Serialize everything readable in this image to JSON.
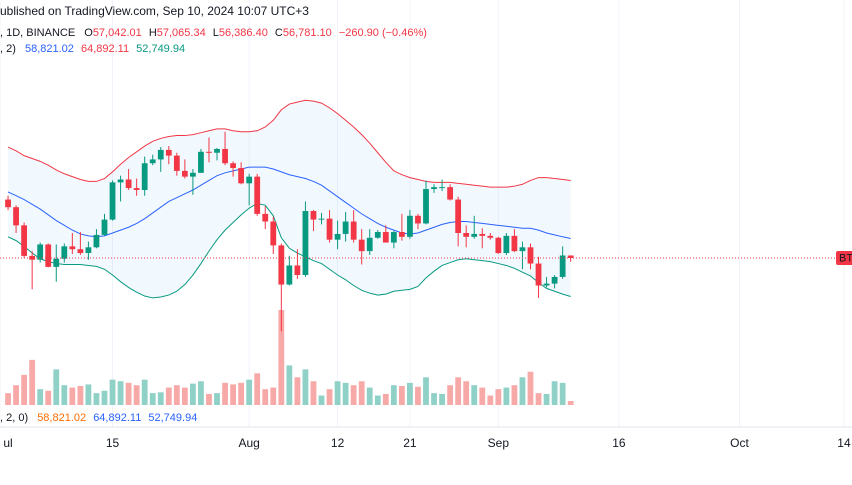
{
  "chart_data": {
    "type": "candlestick",
    "header": "ublished on TradingView.com, Sep 10, 2024 10:07 UTC+3",
    "symbol_info": ", 1D, BINANCE",
    "ohlc": [
      {
        "label": "O",
        "value": "57,042.01"
      },
      {
        "label": "H",
        "value": "57,065.34"
      },
      {
        "label": "L",
        "value": "56,386.40"
      },
      {
        "label": "C",
        "value": "56,781.10"
      }
    ],
    "change": "−260.90 (−0.46%)",
    "bb_legend": {
      "label": ", 2)",
      "values": [
        "58,821.02",
        "64,892.11",
        "52,749.94"
      ]
    },
    "volume_legend": {
      "label": ", 2, 0)",
      "values": [
        "58,821.02",
        "64,892.11",
        "52,749.94"
      ]
    },
    "price_label": "BT",
    "x": [
      "2024-07-02",
      "2024-07-03",
      "2024-07-04",
      "2024-07-05",
      "2024-07-06",
      "2024-07-07",
      "2024-07-08",
      "2024-07-09",
      "2024-07-10",
      "2024-07-11",
      "2024-07-12",
      "2024-07-13",
      "2024-07-14",
      "2024-07-15",
      "2024-07-16",
      "2024-07-17",
      "2024-07-18",
      "2024-07-19",
      "2024-07-20",
      "2024-07-21",
      "2024-07-22",
      "2024-07-23",
      "2024-07-24",
      "2024-07-25",
      "2024-07-26",
      "2024-07-27",
      "2024-07-28",
      "2024-07-29",
      "2024-07-30",
      "2024-07-31",
      "2024-08-01",
      "2024-08-02",
      "2024-08-03",
      "2024-08-04",
      "2024-08-05",
      "2024-08-06",
      "2024-08-07",
      "2024-08-08",
      "2024-08-09",
      "2024-08-10",
      "2024-08-11",
      "2024-08-12",
      "2024-08-13",
      "2024-08-14",
      "2024-08-15",
      "2024-08-16",
      "2024-08-17",
      "2024-08-18",
      "2024-08-19",
      "2024-08-20",
      "2024-08-21",
      "2024-08-22",
      "2024-08-23",
      "2024-08-24",
      "2024-08-25",
      "2024-08-26",
      "2024-08-27",
      "2024-08-28",
      "2024-08-29",
      "2024-08-30",
      "2024-08-31",
      "2024-09-01",
      "2024-09-02",
      "2024-09-03",
      "2024-09-04",
      "2024-09-05",
      "2024-09-06",
      "2024-09-07",
      "2024-09-08",
      "2024-09-09",
      "2024-09-10"
    ],
    "open": [
      62900,
      62100,
      60200,
      57000,
      56600,
      58200,
      55850,
      56700,
      58000,
      57700,
      57300,
      57900,
      59200,
      60800,
      64700,
      65000,
      64100,
      63900,
      66700,
      67100,
      68100,
      67500,
      65900,
      65300,
      65700,
      67900,
      67800,
      68200,
      66700,
      66200,
      64600,
      65300,
      61400,
      60600,
      58100,
      54000,
      56000,
      55000,
      61700,
      60800,
      60900,
      58700,
      59300,
      60600,
      58700,
      57500,
      58900,
      59500,
      58400,
      59500,
      59000,
      61200,
      60400,
      64000,
      64200,
      64200,
      62900,
      59400,
      59000,
      59300,
      59100,
      58900,
      57300,
      59100,
      57500,
      57900,
      56200,
      53900,
      54100,
      54800,
      57042.01
    ],
    "high": [
      63300,
      62300,
      60500,
      57500,
      58400,
      58300,
      58200,
      58300,
      59400,
      59500,
      58500,
      59800,
      61400,
      64900,
      65400,
      66100,
      65100,
      67400,
      67600,
      68400,
      68500,
      67800,
      67100,
      66100,
      68200,
      69400,
      68300,
      70000,
      66900,
      66800,
      65600,
      65600,
      62200,
      61100,
      58300,
      57000,
      57700,
      62700,
      61800,
      61500,
      61800,
      60700,
      61600,
      61800,
      59800,
      59800,
      59700,
      60200,
      59600,
      61400,
      61800,
      61400,
      64900,
      64500,
      65000,
      64500,
      63200,
      60200,
      61200,
      59900,
      59400,
      59000,
      59400,
      59800,
      58500,
      58300,
      56900,
      54800,
      55000,
      58000,
      57065.34
    ],
    "low": [
      61800,
      59400,
      56800,
      53500,
      56300,
      55800,
      54300,
      56300,
      57200,
      57100,
      56600,
      57800,
      59100,
      60700,
      62700,
      63900,
      63300,
      63300,
      66500,
      65800,
      66600,
      65400,
      65100,
      63400,
      65700,
      66800,
      67000,
      66500,
      65300,
      64500,
      62300,
      61200,
      59800,
      57200,
      49100,
      53900,
      54600,
      54800,
      59600,
      60300,
      58400,
      57700,
      58500,
      58400,
      56100,
      57100,
      58800,
      58400,
      57800,
      58600,
      58800,
      59800,
      60300,
      63600,
      63800,
      62800,
      58000,
      57900,
      58800,
      57800,
      58700,
      57200,
      57100,
      57400,
      55600,
      55600,
      52600,
      53700,
      53600,
      54600,
      56386.4
    ],
    "close": [
      62100,
      60200,
      57000,
      56600,
      58200,
      55850,
      56700,
      58000,
      57700,
      57300,
      57900,
      59200,
      60800,
      64700,
      65000,
      64100,
      63900,
      66700,
      67100,
      68100,
      67500,
      65900,
      65300,
      65700,
      67900,
      67800,
      68200,
      66700,
      66200,
      64600,
      65300,
      61400,
      60600,
      58100,
      54000,
      56000,
      55000,
      61700,
      60800,
      60900,
      58700,
      59300,
      60600,
      58700,
      57500,
      58900,
      59500,
      58400,
      59500,
      59000,
      61200,
      60400,
      64000,
      64200,
      64200,
      62900,
      59400,
      59000,
      59300,
      59100,
      58900,
      57300,
      59100,
      57500,
      57900,
      56200,
      53900,
      54100,
      54800,
      57042.01,
      56781.1
    ],
    "volume": [
      15000,
      25000,
      38000,
      57000,
      20000,
      18000,
      45000,
      25000,
      22000,
      24000,
      26000,
      15000,
      18000,
      32000,
      30000,
      28000,
      25000,
      32000,
      15000,
      16000,
      22000,
      25000,
      22000,
      27000,
      30000,
      14000,
      15000,
      28000,
      26000,
      28000,
      32000,
      40000,
      20000,
      22000,
      120000,
      50000,
      35000,
      45000,
      30000,
      12000,
      20000,
      30000,
      28000,
      25000,
      30000,
      22000,
      12000,
      14000,
      25000,
      24000,
      28000,
      23000,
      35000,
      15000,
      14000,
      25000,
      35000,
      30000,
      25000,
      22000,
      12000,
      20000,
      22000,
      25000,
      35000,
      42000,
      15000,
      14000,
      30000,
      28000,
      5000
    ],
    "bands": {
      "basis": [
        63700,
        63300,
        62900,
        62400,
        61900,
        61300,
        60700,
        60200,
        59700,
        59300,
        59100,
        59000,
        59100,
        59400,
        59700,
        60000,
        60400,
        60900,
        61500,
        62100,
        62700,
        63100,
        63500,
        63900,
        64400,
        64900,
        65400,
        65700,
        65900,
        66100,
        66300,
        66300,
        66300,
        66100,
        65800,
        65500,
        65300,
        65100,
        64800,
        64400,
        63800,
        63200,
        62600,
        62000,
        61400,
        60900,
        60400,
        60000,
        59700,
        59400,
        59300,
        59400,
        59700,
        60000,
        60300,
        60500,
        60600,
        60600,
        60500,
        60400,
        60300,
        60200,
        60100,
        60000,
        59900,
        59900,
        59700,
        59400,
        59200,
        59000,
        58821.02
      ],
      "upper": [
        68400,
        68000,
        67500,
        67200,
        66900,
        66500,
        66000,
        65600,
        65300,
        65000,
        64800,
        64800,
        65100,
        65800,
        66600,
        67300,
        67900,
        68500,
        69000,
        69300,
        69500,
        69600,
        69600,
        69700,
        69900,
        70100,
        70300,
        70300,
        70100,
        70000,
        70000,
        70100,
        70500,
        71200,
        72300,
        72900,
        73100,
        73300,
        73200,
        73000,
        72500,
        71900,
        71200,
        70500,
        69700,
        68800,
        67800,
        66800,
        65900,
        65500,
        65200,
        65000,
        64800,
        64700,
        64700,
        64700,
        64600,
        64500,
        64400,
        64300,
        64200,
        64200,
        64200,
        64300,
        64500,
        64900,
        65200,
        65200,
        65100,
        65000,
        64892.11
      ],
      "lower": [
        59000,
        58600,
        58000,
        57300,
        56700,
        56400,
        56200,
        56100,
        56100,
        56100,
        56000,
        55900,
        55600,
        55000,
        54300,
        53700,
        53200,
        52800,
        52600,
        52700,
        52900,
        53300,
        54000,
        55000,
        56200,
        57500,
        58700,
        59700,
        60500,
        61300,
        62000,
        62500,
        62300,
        61200,
        58900,
        57800,
        57300,
        56900,
        56500,
        56200,
        55600,
        55000,
        54500,
        53900,
        53400,
        53100,
        52900,
        53000,
        53300,
        53400,
        53500,
        53800,
        54700,
        55400,
        56000,
        56300,
        56600,
        56700,
        56600,
        56500,
        56400,
        56200,
        56000,
        55700,
        55300,
        54900,
        54200,
        53600,
        53300,
        53000,
        52749.94
      ]
    },
    "colors": {
      "up": "#089981",
      "down": "#f23645",
      "basis": "#2962ff",
      "upper": "#f23645",
      "lower": "#089981",
      "fill": "rgba(33,150,243,0.06)",
      "vol_up": "#8fd0c7",
      "vol_down": "#f7a9a7"
    },
    "xlim": [
      "2024-07-01",
      "2024-10-15"
    ],
    "ylim": [
      41390,
      83793
    ],
    "vlim": [
      0,
      120000
    ],
    "xticks": [
      {
        "value": "2024-07-01",
        "label": "ul"
      },
      {
        "value": "2024-07-15",
        "label": "15"
      },
      {
        "value": "2024-08-01",
        "label": "Aug"
      },
      {
        "value": "2024-08-12",
        "label": "12"
      },
      {
        "value": "2024-08-21",
        "label": "21"
      },
      {
        "value": "2024-09-01",
        "label": "Sep"
      },
      {
        "value": "2024-09-16",
        "label": "16"
      },
      {
        "value": "2024-10-01",
        "label": "Oct"
      },
      {
        "value": "2024-10-14",
        "label": "14"
      }
    ],
    "grid": true
  }
}
